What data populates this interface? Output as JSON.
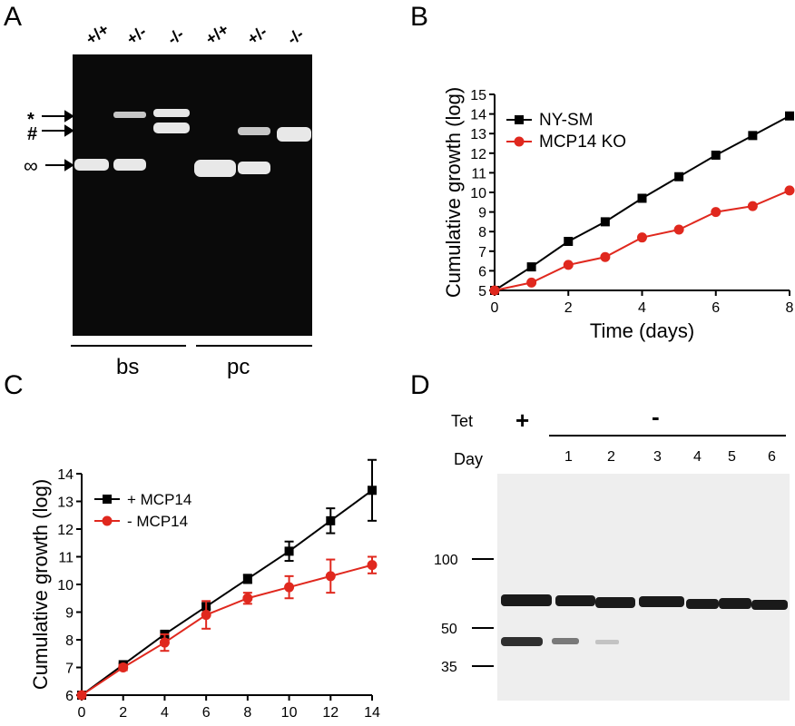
{
  "panels": {
    "A": {
      "letter": "A",
      "lane_labels": [
        "+/+",
        "+/-",
        "-/-",
        "+/+",
        "+/-",
        "-/-"
      ],
      "band_markers": [
        "*",
        "#",
        "∞"
      ],
      "groups": [
        "bs",
        "pc"
      ]
    },
    "B": {
      "letter": "B",
      "chart_data": {
        "type": "line",
        "xlabel": "Time (days)",
        "ylabel": "Cumulative growth (log)",
        "xlim": [
          0,
          8
        ],
        "ylim": [
          5,
          15
        ],
        "xticks": [
          0,
          2,
          4,
          6,
          8
        ],
        "yticks": [
          5,
          6,
          7,
          8,
          9,
          10,
          11,
          12,
          13,
          14,
          15
        ],
        "legend_position": "top-left",
        "grid": false,
        "series": [
          {
            "name": "NY-SM",
            "marker": "square",
            "color": "#000000",
            "x": [
              0,
              1,
              2,
              3,
              4,
              5,
              6,
              7,
              8
            ],
            "y": [
              5.0,
              6.2,
              7.5,
              8.5,
              9.7,
              10.8,
              11.9,
              12.9,
              13.9
            ]
          },
          {
            "name": "MCP14 KO",
            "marker": "circle",
            "color": "#e0281e",
            "x": [
              0,
              1,
              2,
              3,
              4,
              5,
              6,
              7,
              8
            ],
            "y": [
              5.0,
              5.4,
              6.3,
              6.7,
              7.7,
              8.1,
              9.0,
              9.3,
              10.1
            ]
          }
        ]
      }
    },
    "C": {
      "letter": "C",
      "chart_data": {
        "type": "line",
        "xlabel": "Time (days)",
        "ylabel": "Cumulative growth (log)",
        "xlim": [
          0,
          14
        ],
        "ylim": [
          6,
          14
        ],
        "xticks": [
          0,
          2,
          4,
          6,
          8,
          10,
          12,
          14
        ],
        "yticks": [
          6,
          7,
          8,
          9,
          10,
          11,
          12,
          13,
          14
        ],
        "legend_position": "top-left",
        "grid": false,
        "series": [
          {
            "name": "+ MCP14",
            "marker": "square",
            "color": "#000000",
            "x": [
              0,
              2,
              4,
              6,
              8,
              10,
              12,
              14
            ],
            "y": [
              6.0,
              7.1,
              8.2,
              9.2,
              10.2,
              11.2,
              12.3,
              13.4
            ],
            "err": [
              0,
              0.05,
              0.1,
              0.1,
              0.15,
              0.35,
              0.45,
              1.1
            ]
          },
          {
            "name": "- MCP14",
            "marker": "circle",
            "color": "#e0281e",
            "x": [
              0,
              2,
              4,
              6,
              8,
              10,
              12,
              14
            ],
            "y": [
              6.0,
              7.0,
              7.9,
              8.9,
              9.5,
              9.9,
              10.3,
              10.7
            ],
            "err": [
              0,
              0.1,
              0.3,
              0.5,
              0.2,
              0.4,
              0.6,
              0.3
            ]
          }
        ]
      }
    },
    "D": {
      "letter": "D",
      "tet_label": "Tet",
      "tet_plus": "+",
      "tet_minus": "-",
      "day_label": "Day",
      "days": [
        "1",
        "2",
        "3",
        "4",
        "5",
        "6"
      ],
      "mw_markers": [
        "100",
        "50",
        "35"
      ]
    }
  }
}
